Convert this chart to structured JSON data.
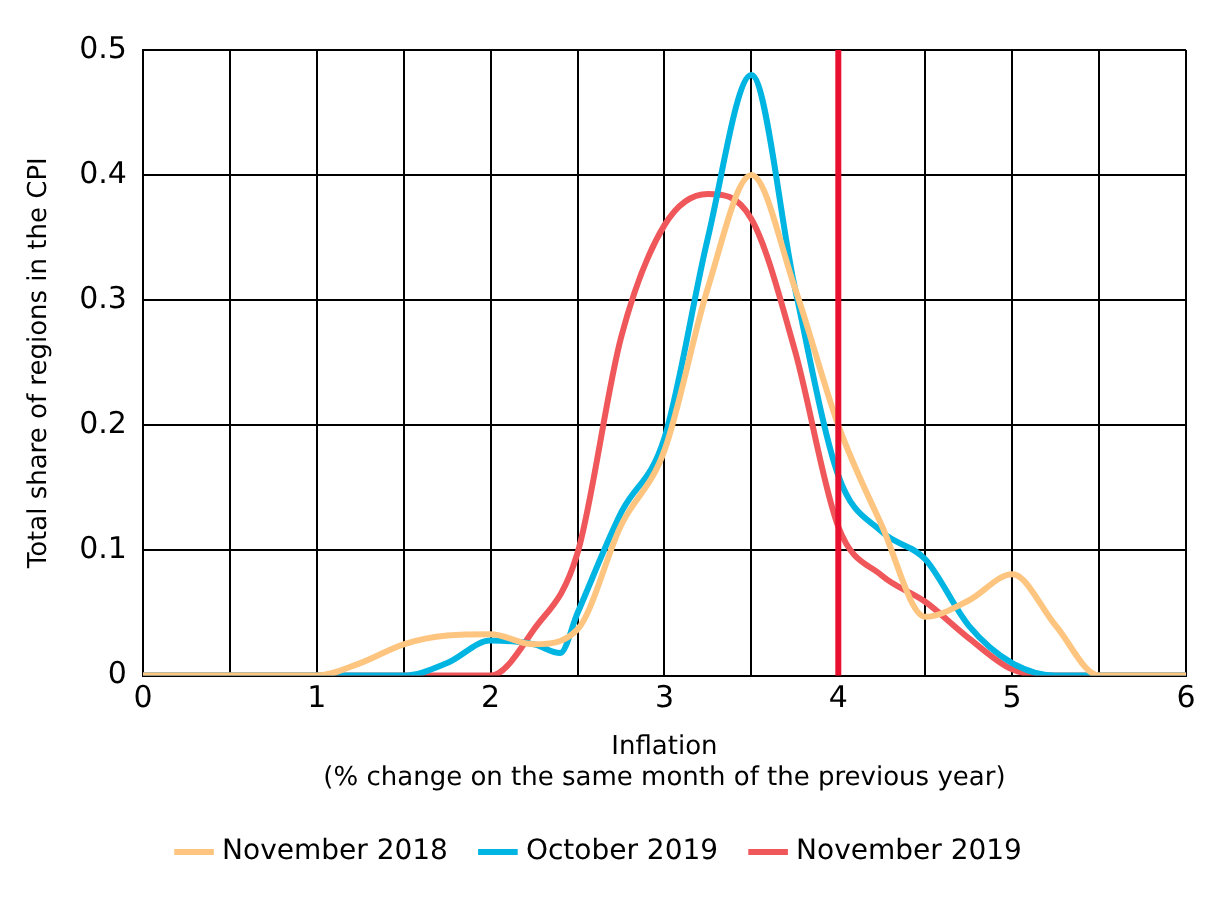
{
  "chart_data": {
    "type": "line",
    "xlabel": "Inflation\n(% change on the same month of the previous year)",
    "ylabel": "Total share of regions in the CPI",
    "xlim": [
      0,
      6
    ],
    "xticks": [
      0,
      {
        "value": 0.5,
        "label": null
      },
      1,
      {
        "value": 1.5,
        "label": null
      },
      2,
      {
        "value": 2.5,
        "label": null
      },
      3,
      {
        "value": 3.5,
        "label": null
      },
      4,
      {
        "value": 4.5,
        "label": null
      },
      5,
      {
        "value": 5.5,
        "label": null
      },
      6
    ],
    "ylim": [
      0,
      0.5
    ],
    "yticks": [
      0,
      0.1,
      0.2,
      0.3,
      0.4,
      0.5
    ],
    "grid": true,
    "legend": "bottom",
    "marker": "none",
    "line_style": "solid",
    "ref_lines": [
      {
        "axis": "x",
        "value": 4,
        "color": "#e8102e"
      }
    ],
    "series": [
      {
        "name": "November 2018",
        "color": "#fdc57f",
        "x": [
          0,
          1,
          1.25,
          1.5,
          1.75,
          2,
          2.25,
          2.5,
          2.75,
          3,
          3.25,
          3.5,
          3.75,
          4,
          4.25,
          4.5,
          4.75,
          5,
          5.25,
          5.5,
          6
        ],
        "values": [
          0,
          0,
          0.01,
          0.025,
          0.032,
          0.033,
          0.025,
          0.037,
          0.12,
          0.18,
          0.31,
          0.4,
          0.31,
          0.2,
          0.12,
          0.047,
          0.06,
          0.081,
          0.04,
          0,
          0
        ]
      },
      {
        "name": "October 2019",
        "color": "#00b5e2",
        "x": [
          0,
          1.5,
          1.75,
          2,
          2.25,
          2.4,
          2.5,
          2.75,
          3,
          3.25,
          3.5,
          3.75,
          4,
          4.25,
          4.5,
          4.75,
          5,
          5.25,
          6
        ],
        "values": [
          0,
          0,
          0.01,
          0.028,
          0.025,
          0.018,
          0.05,
          0.13,
          0.19,
          0.35,
          0.48,
          0.31,
          0.16,
          0.115,
          0.093,
          0.04,
          0.01,
          0,
          0
        ]
      },
      {
        "name": "November 2019",
        "color": "#f0575a",
        "x": [
          0,
          2,
          2.25,
          2.5,
          2.75,
          3,
          3.25,
          3.5,
          3.75,
          4,
          4.25,
          4.5,
          4.75,
          5,
          5.25,
          6
        ],
        "values": [
          0,
          0,
          0.037,
          0.098,
          0.27,
          0.36,
          0.385,
          0.365,
          0.26,
          0.119,
          0.08,
          0.059,
          0.03,
          0.005,
          0,
          0
        ]
      }
    ]
  }
}
